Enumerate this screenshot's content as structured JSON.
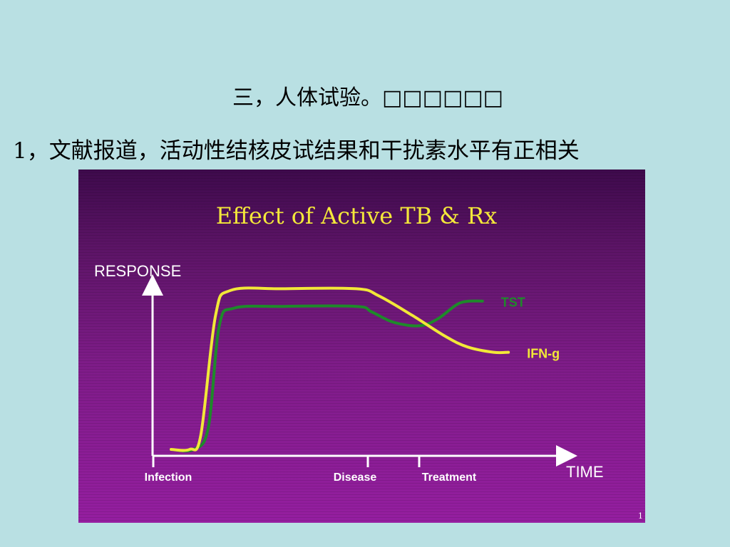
{
  "slide": {
    "title": "三，人体试验。□□□□□□",
    "subtitle": "1，文献报道，活动性结核皮试结果和干扰素水平有正相关",
    "page_number": "1"
  },
  "chart_data": {
    "type": "line",
    "title": "Effect of Active TB & Rx",
    "ylabel": "RESPONSE",
    "xlabel": "TIME",
    "x_markers": [
      "Infection",
      "Disease",
      "Treatment"
    ],
    "grid": false,
    "colors": {
      "title": "#f4e83a",
      "axis": "#ffffff",
      "tst": "#1e8a2a",
      "ifn": "#f2e838",
      "background": "#7e1c88"
    },
    "series": [
      {
        "name": "TST",
        "color": "#1e8a2a",
        "label_position": "end",
        "points": [
          [
            0.0,
            0.02
          ],
          [
            0.06,
            0.02
          ],
          [
            0.1,
            0.14
          ],
          [
            0.13,
            0.72
          ],
          [
            0.17,
            0.82
          ],
          [
            0.3,
            0.83
          ],
          [
            0.5,
            0.83
          ],
          [
            0.54,
            0.8
          ],
          [
            0.6,
            0.74
          ],
          [
            0.67,
            0.72
          ],
          [
            0.72,
            0.76
          ],
          [
            0.78,
            0.85
          ],
          [
            0.84,
            0.86
          ]
        ]
      },
      {
        "name": "IFN-g",
        "color": "#f2e838",
        "label_position": "end",
        "points": [
          [
            0.0,
            0.02
          ],
          [
            0.05,
            0.02
          ],
          [
            0.08,
            0.1
          ],
          [
            0.12,
            0.78
          ],
          [
            0.16,
            0.92
          ],
          [
            0.3,
            0.93
          ],
          [
            0.5,
            0.93
          ],
          [
            0.56,
            0.89
          ],
          [
            0.65,
            0.78
          ],
          [
            0.74,
            0.66
          ],
          [
            0.8,
            0.6
          ],
          [
            0.87,
            0.57
          ],
          [
            0.91,
            0.57
          ]
        ]
      }
    ]
  }
}
